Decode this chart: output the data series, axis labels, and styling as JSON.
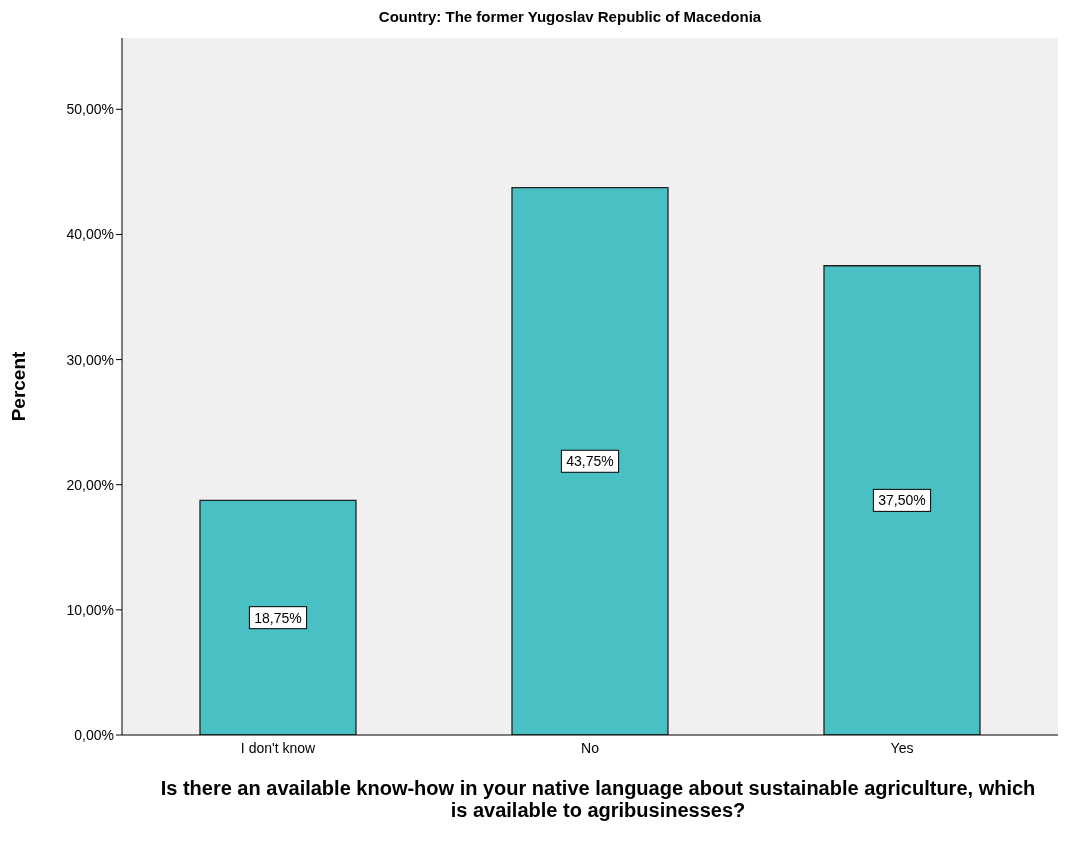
{
  "chart_data": {
    "type": "bar",
    "title": "Country: The former Yugoslav Republic of Macedonia",
    "xlabel": "Is there an available know-how in your native language about sustainable agriculture, which is available to agribusinesses?",
    "ylabel": "Percent",
    "categories": [
      "I don't know",
      "No",
      "Yes"
    ],
    "values": [
      18.75,
      43.75,
      37.5
    ],
    "value_labels": [
      "18,75%",
      "43,75%",
      "37,50%"
    ],
    "color": "#48c0c4",
    "ylim": [
      0,
      55.7
    ],
    "yticks": [
      {
        "value": 0,
        "label": "0,00%"
      },
      {
        "value": 10,
        "label": "10,00%"
      },
      {
        "value": 20,
        "label": "20,00%"
      },
      {
        "value": 30,
        "label": "30,00%"
      },
      {
        "value": 40,
        "label": "40,00%"
      },
      {
        "value": 50,
        "label": "50,00%"
      }
    ],
    "grid": false,
    "legend": false
  }
}
